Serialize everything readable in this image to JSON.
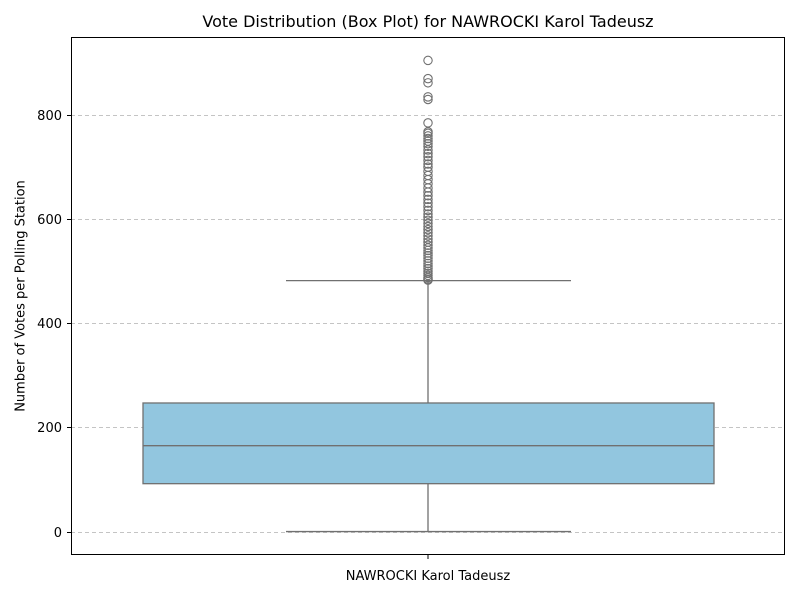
{
  "chart_data": {
    "type": "box",
    "title": "Vote Distribution (Box Plot) for NAWROCKI Karol Tadeusz",
    "xlabel": "NAWROCKI Karol Tadeusz",
    "ylabel": "Number of Votes per Polling Station",
    "ylim": [
      -45,
      950
    ],
    "yticks": [
      0,
      200,
      400,
      600,
      800
    ],
    "grid": "horizontal, dashed",
    "box_color": "#92c6df",
    "line_color": "#707070",
    "box": {
      "category": "NAWROCKI Karol Tadeusz",
      "whisker_low": 0,
      "q1": 92,
      "median": 165,
      "q3": 247,
      "whisker_high": 482
    },
    "outliers": [
      905,
      870,
      862,
      835,
      830,
      785,
      768,
      765,
      760,
      755,
      750,
      745,
      740,
      733,
      726,
      720,
      713,
      706,
      700,
      692,
      684,
      676,
      668,
      660,
      652,
      645,
      638,
      631,
      624,
      617,
      610,
      604,
      598,
      592,
      586,
      580,
      574,
      568,
      562,
      556,
      550,
      545,
      540,
      535,
      530,
      525,
      520,
      515,
      510,
      505,
      500,
      496,
      492,
      488,
      485,
      483
    ]
  }
}
